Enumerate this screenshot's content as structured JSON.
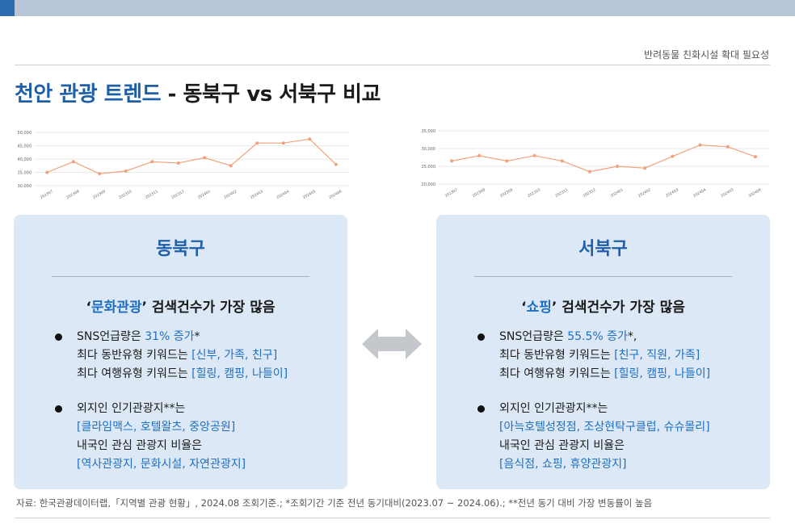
{
  "header": {
    "note": "반려동물 친화시설 확대 필요성",
    "title_part1": "천안 관광 트렌드",
    "title_part2": " - 동북구 vs 서북구 비교"
  },
  "chart_data": [
    {
      "type": "line",
      "x": [
        "2023.07",
        "2023.08",
        "2023.09",
        "2023.10",
        "2023.11",
        "2023.12",
        "2024.01",
        "2024.02",
        "2024.03",
        "2024.04",
        "2024.05",
        "2024.06"
      ],
      "values": [
        35000,
        39000,
        34500,
        35500,
        39000,
        38500,
        40500,
        37500,
        46000,
        46000,
        47500,
        38000
      ],
      "yticks": [
        "50,000",
        "45,000",
        "40,000",
        "35,000",
        "30,000"
      ],
      "ylim": [
        30000,
        50000
      ],
      "color": "#f0a27a",
      "grid": true
    },
    {
      "type": "line",
      "x": [
        "2023.07",
        "2023.08",
        "2023.09",
        "2023.10",
        "2023.11",
        "2023.12",
        "2024.01",
        "2024.02",
        "2024.03",
        "2024.04",
        "2024.05",
        "2024.06"
      ],
      "values": [
        26500,
        28000,
        26500,
        28000,
        26500,
        23500,
        25000,
        24500,
        27800,
        31000,
        30500,
        27700
      ],
      "yticks": [
        "35,000",
        "30,000",
        "25,000",
        "20,000"
      ],
      "ylim": [
        20000,
        35000
      ],
      "color": "#f0a27a",
      "grid": true
    }
  ],
  "left_panel": {
    "title": "동북구",
    "headline_pre": "‘",
    "headline_hl": "문화관광",
    "headline_post": "’ 검색건수가 가장 많음",
    "b1_l1_pre": "SNS언급량은 ",
    "b1_l1_hl": "31% 증가",
    "b1_l1_post": "*",
    "b1_l2_pre": "최다 동반유형 키워드는 ",
    "b1_l2_hl": "[신부, 가족, 친구]",
    "b1_l3_pre": "최다 여행유형 키워드는 ",
    "b1_l3_hl": "[힐링, 캠핑, 나들이]",
    "b2_l1": "외지인 인기관광지**는",
    "b2_l2": "[클라임맥스, 호텔왈츠, 중앙공원]",
    "b2_l3": "내국인 관심 관광지 비율은",
    "b2_l4": "[역사관광지, 문화시설, 자연관광지]"
  },
  "right_panel": {
    "title": "서북구",
    "headline_pre": "‘",
    "headline_hl": "쇼핑",
    "headline_post": "’ 검색건수가 가장 많음",
    "b1_l1_pre": "SNS언급량은 ",
    "b1_l1_hl": "55.5% 증가",
    "b1_l1_post": "*,",
    "b1_l2_pre": "최다 동반유형 키워드는 ",
    "b1_l2_hl": "[친구, 직원, 가족]",
    "b1_l3_pre": "최다 여행유형 키워드는 ",
    "b1_l3_hl": "[힐링, 캠핑, 나들이]",
    "b2_l1": "외지인 인기관광지**는",
    "b2_l2": "[아늑호텔성정점, 조상현탁구클럽, 슈슈몰리]",
    "b2_l3": "내국인 관심 관광지 비율은",
    "b2_l4": "[음식점, 쇼핑, 휴양관광지]"
  },
  "footnote": "자료: 한국관광데이터랩,「지역별 관광 현황」, 2024.08 조회기준.; *조회기간 기준 전년 동기대비(2023.07 ~ 2024.06).; **전년 동기 대비 가장 변동률이 높음",
  "arrow_icon": "double-arrow-icon"
}
